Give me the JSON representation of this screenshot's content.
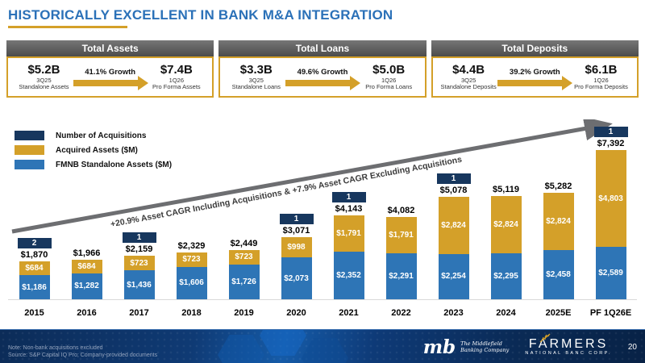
{
  "slide": {
    "title": "HISTORICALLY EXCELLENT IN BANK M&A INTEGRATION",
    "page_number": "20"
  },
  "colors": {
    "title_blue": "#2B71B8",
    "accent_gold": "#D4A029",
    "navy": "#17375E",
    "bar_blue": "#2E75B6",
    "trend_gray": "#6d6e71"
  },
  "summary_boxes": [
    {
      "title": "Total Assets",
      "from_value": "$5.2B",
      "from_period": "3Q25",
      "from_label": "Standalone Assets",
      "growth": "41.1% Growth",
      "to_value": "$7.4B",
      "to_period": "1Q26",
      "to_label": "Pro Forma Assets"
    },
    {
      "title": "Total Loans",
      "from_value": "$3.3B",
      "from_period": "3Q25",
      "from_label": "Standalone Loans",
      "growth": "49.6% Growth",
      "to_value": "$5.0B",
      "to_period": "1Q26",
      "to_label": "Pro Forma Loans"
    },
    {
      "title": "Total Deposits",
      "from_value": "$4.4B",
      "from_period": "3Q25",
      "from_label": "Standalone Deposits",
      "growth": "39.2% Growth",
      "to_value": "$6.1B",
      "to_period": "1Q26",
      "to_label": "Pro Forma Deposits"
    }
  ],
  "legend": [
    {
      "label": "Number of Acquisitions",
      "color": "#17375E"
    },
    {
      "label": "Acquired Assets ($M)",
      "color": "#D4A029"
    },
    {
      "label": "FMNB Standalone Assets ($M)",
      "color": "#2E75B6"
    }
  ],
  "annotation": "+20.9% Asset CAGR Including Acquisitions & +7.9% Asset CAGR Excluding Acquisitions",
  "chart_data": {
    "type": "bar",
    "stacked": true,
    "title": "",
    "xlabel": "",
    "ylabel": "Assets ($M)",
    "ylim": [
      0,
      7500
    ],
    "grid": false,
    "legend_position": "top-left",
    "categories": [
      "2015",
      "2016",
      "2017",
      "2018",
      "2019",
      "2020",
      "2021",
      "2022",
      "2023",
      "2024",
      "2025E",
      "PF 1Q26E"
    ],
    "series": [
      {
        "name": "FMNB Standalone Assets ($M)",
        "color": "#2E75B6",
        "values": [
          1186,
          1282,
          1436,
          1606,
          1726,
          2073,
          2352,
          2291,
          2254,
          2295,
          2458,
          2589
        ]
      },
      {
        "name": "Acquired Assets ($M)",
        "color": "#D4A029",
        "values": [
          684,
          684,
          723,
          723,
          723,
          998,
          1791,
          1791,
          2824,
          2824,
          2824,
          4803
        ]
      }
    ],
    "totals_display": [
      "$1,870",
      "$1,966",
      "$2,159",
      "$2,329",
      "$2,449",
      "$3,071",
      "$4,143",
      "$4,082",
      "$5,078",
      "$5,119",
      "$5,282",
      "$7,392"
    ],
    "acquisitions": [
      2,
      null,
      1,
      null,
      null,
      1,
      1,
      null,
      1,
      null,
      null,
      1
    ]
  },
  "footer": {
    "note": "Note: Non-bank acquisitions excluded",
    "source": "Source: S&P Capital IQ Pro; Company-provided documents",
    "middlefield_logo": {
      "monogram": "mb",
      "line1": "The Middlefield",
      "line2": "Banking Company"
    },
    "farmers_logo": {
      "name": "FARMERS",
      "subtitle": "NATIONAL BANC CORP."
    }
  }
}
